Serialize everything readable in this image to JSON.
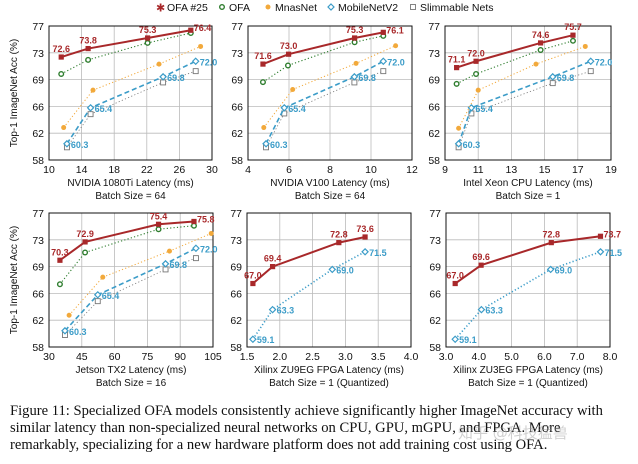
{
  "legend": [
    {
      "name": "OFA #25",
      "color": "#a8282a",
      "marker": "star",
      "line": "solid"
    },
    {
      "name": "OFA",
      "color": "#2e7d2e",
      "marker": "hollow-circle",
      "line": "dotted"
    },
    {
      "name": "MnasNet",
      "color": "#f2a93b",
      "marker": "filled-circle",
      "line": "dotted"
    },
    {
      "name": "MobileNetV2",
      "color": "#3b9cc8",
      "marker": "hollow-diamond",
      "line": "dashed"
    },
    {
      "name": "Slimmable Nets",
      "color": "#777777",
      "marker": "hollow-square",
      "line": "dotted"
    }
  ],
  "caption": "Figure 11: Specialized OFA models consistently achieve significantly higher ImageNet accuracy with similar latency than non-specialized neural networks on CPU, GPU, mGPU, and FPGA. More remarkably, specializing for a new hardware platform does not add training cost using OFA.",
  "watermark": "知乎 @科技猛兽",
  "chart_data": [
    {
      "type": "line",
      "xlabel": "NVIDIA 1080Ti Latency (ms)",
      "subtitle": "Batch Size = 64",
      "ylabel": "Top-1 ImageNet Acc (%)",
      "xlim": [
        10,
        30
      ],
      "xticks": [
        "10",
        "14",
        "18",
        "22",
        "26",
        "30"
      ],
      "ylim": [
        58,
        77
      ],
      "yticks": [
        "58",
        "62",
        "66",
        "69",
        "73",
        "77"
      ],
      "grid": true,
      "series": [
        {
          "name": "OFA #25",
          "x": [
            11.5,
            14.8,
            22.1,
            27.4
          ],
          "y": [
            72.6,
            73.8,
            75.3,
            76.4
          ],
          "labels": [
            "72.6",
            "73.8",
            "75.3",
            "76.4"
          ]
        },
        {
          "name": "OFA",
          "x": [
            11.5,
            14.8,
            22.1,
            27.4
          ],
          "y": [
            70.2,
            72.2,
            74.6,
            76.0
          ]
        },
        {
          "name": "MnasNet",
          "x": [
            11.8,
            15.4,
            23.5,
            28.6
          ],
          "y": [
            62.6,
            67.9,
            71.6,
            74.1
          ]
        },
        {
          "name": "MobileNetV2",
          "x": [
            12.2,
            15.1,
            24.0,
            28.0
          ],
          "y": [
            60.3,
            65.4,
            69.8,
            72.0
          ],
          "labels": [
            "60.3",
            "65.4",
            "69.8",
            "72.0"
          ]
        },
        {
          "name": "Slimmable Nets",
          "x": [
            12.2,
            15.1,
            24.0,
            28.0
          ],
          "y": [
            59.8,
            64.5,
            69.0,
            70.6
          ]
        }
      ]
    },
    {
      "type": "line",
      "xlabel": "NVIDIA V100 Latency (ms)",
      "subtitle": "Batch Size = 64",
      "ylabel": "",
      "xlim": [
        4,
        12
      ],
      "xticks": [
        "4",
        "6",
        "8",
        "10",
        "12"
      ],
      "ylim": [
        58,
        77
      ],
      "yticks": [
        "58",
        "62",
        "66",
        "69",
        "73",
        "77"
      ],
      "grid": true,
      "series": [
        {
          "name": "OFA #25",
          "x": [
            4.73,
            5.98,
            9.2,
            10.6
          ],
          "y": [
            71.6,
            73.0,
            75.3,
            76.1
          ],
          "labels": [
            "71.6",
            "73.0",
            "75.3",
            "76.1"
          ]
        },
        {
          "name": "OFA",
          "x": [
            4.73,
            5.95,
            9.2,
            10.6
          ],
          "y": [
            69.05,
            71.4,
            74.7,
            75.6
          ]
        },
        {
          "name": "MnasNet",
          "x": [
            4.77,
            6.18,
            9.27,
            11.2
          ],
          "y": [
            62.6,
            68.0,
            71.7,
            74.2
          ]
        },
        {
          "name": "MobileNetV2",
          "x": [
            4.88,
            5.77,
            9.19,
            10.6
          ],
          "y": [
            60.3,
            65.4,
            69.8,
            72.0
          ],
          "labels": [
            "60.3",
            "65.4",
            "69.8",
            "72.0"
          ]
        },
        {
          "name": "Slimmable Nets",
          "x": [
            4.88,
            5.77,
            9.19,
            10.6
          ],
          "y": [
            59.8,
            64.6,
            69.0,
            70.6
          ]
        }
      ]
    },
    {
      "type": "line",
      "xlabel": "Intel Xeon CPU Latency (ms)",
      "subtitle": "Batch Size = 1",
      "ylabel": "",
      "xlim": [
        9,
        19
      ],
      "xticks": [
        "9",
        "11",
        "13",
        "15",
        "17",
        "19"
      ],
      "ylim": [
        58,
        77
      ],
      "yticks": [
        "58",
        "62",
        "66",
        "69",
        "73",
        "77"
      ],
      "grid": true,
      "series": [
        {
          "name": "OFA #25",
          "x": [
            9.7,
            10.87,
            14.76,
            16.71
          ],
          "y": [
            71.1,
            72.0,
            74.6,
            75.7
          ],
          "labels": [
            "71.1",
            "72.0",
            "74.6",
            "75.7"
          ]
        },
        {
          "name": "OFA",
          "x": [
            9.7,
            10.87,
            14.76,
            16.71
          ],
          "y": [
            68.8,
            70.2,
            73.6,
            74.9
          ]
        },
        {
          "name": "MnasNet",
          "x": [
            9.82,
            11.0,
            14.48,
            17.45
          ],
          "y": [
            62.5,
            67.9,
            71.6,
            74.1
          ]
        },
        {
          "name": "MobileNetV2",
          "x": [
            9.82,
            10.59,
            15.49,
            17.78
          ],
          "y": [
            60.3,
            65.4,
            69.8,
            72.0
          ],
          "labels": [
            "60.3",
            "65.4",
            "69.8",
            "72.0"
          ]
        },
        {
          "name": "Slimmable Nets",
          "x": [
            9.82,
            10.59,
            15.49,
            17.78
          ],
          "y": [
            59.8,
            64.6,
            68.9,
            70.6
          ]
        }
      ]
    },
    {
      "type": "line",
      "xlabel": "Jetson TX2 Latency (ms)",
      "subtitle": "Batch Size = 16",
      "ylabel": "Top-1 ImageNet Acc (%)",
      "xlim": [
        30,
        105
      ],
      "xticks": [
        "30",
        "45",
        "60",
        "75",
        "90",
        "105"
      ],
      "ylim": [
        58,
        77
      ],
      "yticks": [
        "58",
        "62",
        "66",
        "69",
        "73",
        "77"
      ],
      "grid": true,
      "series": [
        {
          "name": "OFA #25",
          "x": [
            35.0,
            46.5,
            80.1,
            96.3
          ],
          "y": [
            70.3,
            72.9,
            75.4,
            75.8
          ],
          "labels": [
            "70.3",
            "72.9",
            "75.4",
            "75.8"
          ]
        },
        {
          "name": "OFA",
          "x": [
            35.0,
            46.5,
            80.1,
            96.3
          ],
          "y": [
            66.9,
            71.4,
            74.7,
            75.2
          ]
        },
        {
          "name": "MnasNet",
          "x": [
            39.2,
            54.6,
            85.1,
            104.2
          ],
          "y": [
            62.5,
            67.9,
            71.6,
            74.1
          ]
        },
        {
          "name": "MobileNetV2",
          "x": [
            37.3,
            52.3,
            83.3,
            97.2
          ],
          "y": [
            60.3,
            65.4,
            69.8,
            72.0
          ],
          "labels": [
            "60.3",
            "65.4",
            "69.8",
            "72.0"
          ]
        },
        {
          "name": "Slimmable Nets",
          "x": [
            37.3,
            52.3,
            83.3,
            97.2
          ],
          "y": [
            59.7,
            64.5,
            69.0,
            70.6
          ]
        }
      ]
    },
    {
      "type": "line",
      "xlabel": "Xilinx ZU9EG FPGA Latency (ms)",
      "subtitle": "Batch Size = 1 (Quantized)",
      "ylabel": "",
      "xlim": [
        1.5,
        4.0
      ],
      "xticks": [
        "1.5",
        "2.0",
        "2.5",
        "3.0",
        "3.5",
        "4.0"
      ],
      "ylim": [
        58,
        77
      ],
      "yticks": [
        "58",
        "62",
        "66",
        "69",
        "73",
        "77"
      ],
      "grid": true,
      "series": [
        {
          "name": "OFA #25",
          "x": [
            1.59,
            1.89,
            2.9,
            3.3
          ],
          "y": [
            67.0,
            69.4,
            72.8,
            73.6
          ],
          "labels": [
            "67.0",
            "69.4",
            "72.8",
            "73.6"
          ]
        },
        {
          "name": "MobileNetV2",
          "x": [
            1.59,
            1.89,
            2.8,
            3.3
          ],
          "y": [
            59.1,
            63.3,
            69.0,
            71.5
          ],
          "labels": [
            "59.1",
            "63.3",
            "69.0",
            "71.5"
          ],
          "line": "dotted"
        }
      ]
    },
    {
      "type": "line",
      "xlabel": "Xilinx ZU3EG FPGA Latency (ms)",
      "subtitle": "Batch Size = 1 (Quantized)",
      "ylabel": "",
      "xlim": [
        3.0,
        8.0
      ],
      "xticks": [
        "3.0",
        "4.0",
        "5.0",
        "6.0",
        "7.0",
        "8.0"
      ],
      "ylim": [
        58,
        77
      ],
      "yticks": [
        "58",
        "62",
        "66",
        "69",
        "73",
        "77"
      ],
      "grid": true,
      "series": [
        {
          "name": "OFA #25",
          "x": [
            3.28,
            4.07,
            6.21,
            7.71
          ],
          "y": [
            67.0,
            69.6,
            72.8,
            73.7
          ],
          "labels": [
            "67.0",
            "69.6",
            "72.8",
            "73.7"
          ]
        },
        {
          "name": "MobileNetV2",
          "x": [
            3.28,
            4.08,
            6.19,
            7.71
          ],
          "y": [
            59.1,
            63.3,
            69.0,
            71.5
          ],
          "labels": [
            "59.1",
            "63.3",
            "69.0",
            "71.5"
          ],
          "line": "dotted"
        }
      ]
    }
  ]
}
